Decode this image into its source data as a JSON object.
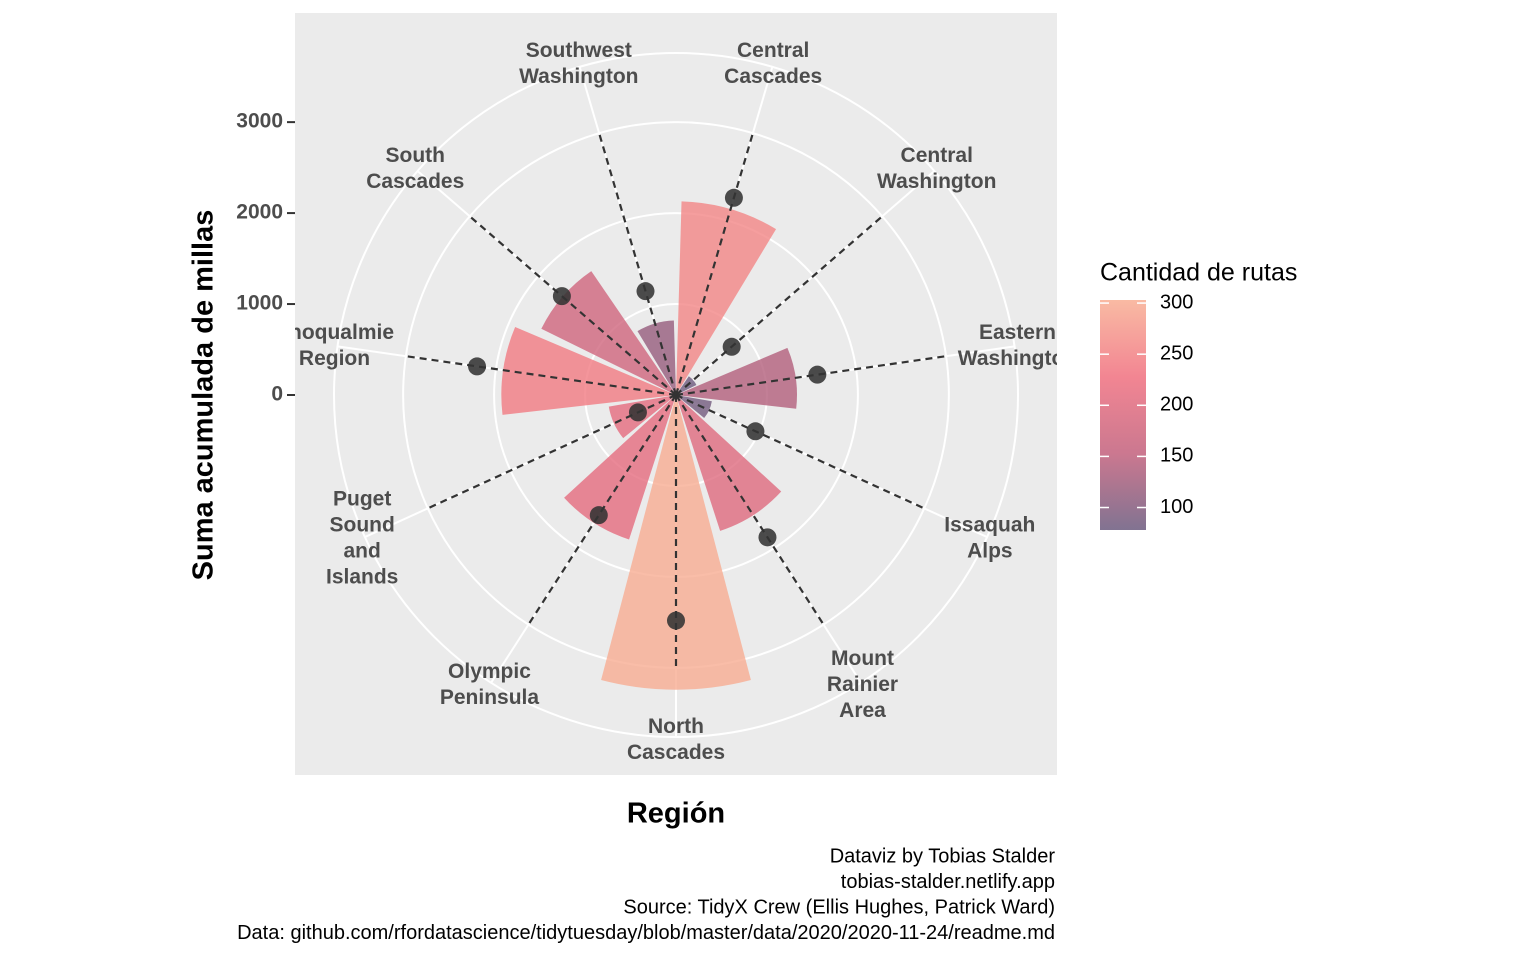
{
  "chart_data": {
    "type": "polar_bar",
    "x_label": "Región",
    "y_label": "Suma acumulada de millas",
    "legend_title": "Cantidad de rutas",
    "caption": [
      "Dataviz by Tobias Stalder",
      "tobias-stalder.netlify.app",
      "Source: TidyX Crew (Ellis Hughes, Patrick Ward)",
      "Data: github.com/rfordatascience/tidytuesday/blob/master/data/2020/2020-11-24/readme.md"
    ],
    "categories": [
      "Central\nCascades",
      "Central\nWashington",
      "Eastern\nWashington",
      "Issaquah\nAlps",
      "Mount\nRainier\nArea",
      "North\nCascades",
      "Olympic\nPeninsula",
      "Puget\nSound\nand\nIslands",
      "Snoqualmie\nRegion",
      "South\nCascades",
      "Southwest\nWashington"
    ],
    "values": [
      2130,
      250,
      1330,
      400,
      1570,
      3240,
      1670,
      750,
      1920,
      1650,
      820
    ],
    "points": [
      2260,
      810,
      1570,
      960,
      1860,
      2480,
      1570,
      460,
      2210,
      1660,
      1190
    ],
    "fill_values": [
      255,
      80,
      140,
      85,
      200,
      300,
      210,
      210,
      240,
      175,
      115
    ],
    "fill_colors": [
      "#6b5a7e",
      "#c2607c",
      "#f0707f",
      "#f8ae93"
    ],
    "colorbar_lim": [
      78,
      303
    ],
    "colorbar_ticks": [
      100,
      150,
      200,
      250,
      300
    ],
    "ylim": [
      0,
      3760
    ],
    "yticks": [
      0,
      1000,
      2000,
      3000
    ],
    "grid": true
  }
}
